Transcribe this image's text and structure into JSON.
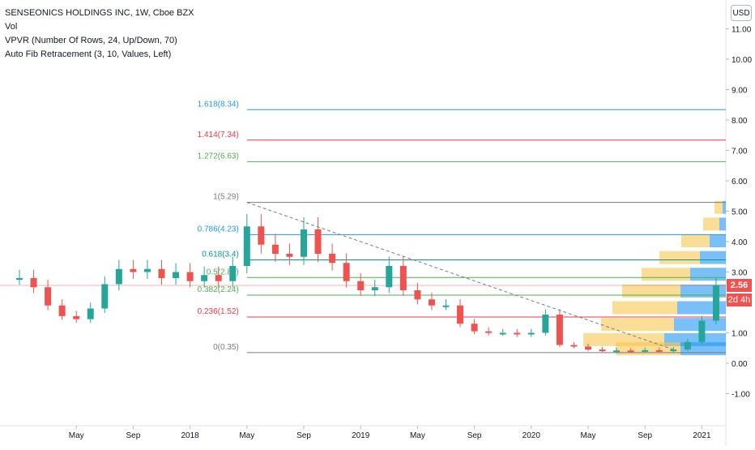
{
  "header": {
    "title": "SENSEONICS HOLDINGS INC, 1W, Cboe BZX",
    "indicators": [
      "Vol",
      "VPVR (Number Of Rows, 24, Up/Down, 70)",
      "Auto Fib Retracement (3, 10, Values, Left)"
    ]
  },
  "currency_button": "USD",
  "last_price_tag": "2.56",
  "countdown_tag": "2d 4h",
  "colors": {
    "up": "#26a69a",
    "down": "#ef5350",
    "fib_blue": "#2196f3",
    "fib_red": "#f23645",
    "fib_green": "#4caf50",
    "fib_gray": "#787b86",
    "fib_teal": "#089981",
    "vp_up": "#2196f3",
    "vp_down": "#f5c242"
  },
  "chart_data": {
    "type": "candlestick",
    "y_axis": {
      "range": [
        -1.5,
        11.5
      ],
      "ticks": [
        "11.00",
        "10.00",
        "9.00",
        "8.00",
        "7.00",
        "6.00",
        "5.00",
        "4.00",
        "3.00",
        "2.00",
        "1.00",
        "0.00",
        "-1.00"
      ]
    },
    "x_axis": {
      "ticks": [
        "May",
        "Sep",
        "2018",
        "May",
        "Sep",
        "2019",
        "May",
        "Sep",
        "2020",
        "May",
        "Sep",
        "2021"
      ]
    },
    "fib_levels": [
      {
        "label": "1.618(8.34)",
        "value": 8.34,
        "color": "#2196f3"
      },
      {
        "label": "1.414(7.34)",
        "value": 7.34,
        "color": "#f23645"
      },
      {
        "label": "1.272(6.63)",
        "value": 6.63,
        "color": "#4caf50"
      },
      {
        "label": "1(5.29)",
        "value": 5.29,
        "color": "#787b86"
      },
      {
        "label": "0.786(4.23)",
        "value": 4.23,
        "color": "#2196f3"
      },
      {
        "label": "0.618(3.4)",
        "value": 3.4,
        "color": "#089981"
      },
      {
        "label": "0.5(2.82)",
        "value": 2.82,
        "color": "#4caf50"
      },
      {
        "label": "0.382(2.24)",
        "value": 2.24,
        "color": "#4caf50"
      },
      {
        "label": "0.236(1.52)",
        "value": 1.52,
        "color": "#f23645"
      },
      {
        "label": "0(0.35)",
        "value": 0.35,
        "color": "#787b86"
      }
    ],
    "price_series": [
      [
        "2017-01",
        2.8
      ],
      [
        "2017-02",
        2.5
      ],
      [
        "2017-03",
        1.9
      ],
      [
        "2017-04",
        1.55
      ],
      [
        "2017-05",
        1.45
      ],
      [
        "2017-06",
        1.8
      ],
      [
        "2017-07",
        2.6
      ],
      [
        "2017-08",
        3.1
      ],
      [
        "2017-09",
        3.0
      ],
      [
        "2017-10",
        3.1
      ],
      [
        "2017-11",
        2.8
      ],
      [
        "2017-12",
        3.0
      ],
      [
        "2018-01",
        2.7
      ],
      [
        "2018-02",
        2.9
      ],
      [
        "2018-03",
        2.7
      ],
      [
        "2018-04",
        3.2
      ],
      [
        "2018-05",
        4.5
      ],
      [
        "2018-06",
        3.9
      ],
      [
        "2018-07",
        3.6
      ],
      [
        "2018-08",
        3.5
      ],
      [
        "2018-09",
        4.4
      ],
      [
        "2018-10",
        3.6
      ],
      [
        "2018-11",
        3.3
      ],
      [
        "2018-12",
        2.7
      ],
      [
        "2019-01",
        2.4
      ],
      [
        "2019-02",
        2.5
      ],
      [
        "2019-03",
        3.2
      ],
      [
        "2019-04",
        2.4
      ],
      [
        "2019-05",
        2.1
      ],
      [
        "2019-06",
        1.9
      ],
      [
        "2019-07",
        1.9
      ],
      [
        "2019-08",
        1.3
      ],
      [
        "2019-09",
        1.05
      ],
      [
        "2019-10",
        1.0
      ],
      [
        "2019-11",
        1.0
      ],
      [
        "2019-12",
        0.95
      ],
      [
        "2020-01",
        1.0
      ],
      [
        "2020-02",
        1.6
      ],
      [
        "2020-03",
        0.6
      ],
      [
        "2020-04",
        0.55
      ],
      [
        "2020-05",
        0.45
      ],
      [
        "2020-06",
        0.4
      ],
      [
        "2020-07",
        0.42
      ],
      [
        "2020-08",
        0.4
      ],
      [
        "2020-09",
        0.43
      ],
      [
        "2020-10",
        0.4
      ],
      [
        "2020-11",
        0.45
      ],
      [
        "2020-12",
        0.7
      ],
      [
        "2021-01",
        1.4
      ],
      [
        "2021-02",
        2.56
      ]
    ],
    "volume_profile": [
      {
        "price": 5.1,
        "up": 0.05,
        "down": 0.1
      },
      {
        "price": 4.55,
        "up": 0.1,
        "down": 0.2
      },
      {
        "price": 4.0,
        "up": 0.25,
        "down": 0.35
      },
      {
        "price": 3.45,
        "up": 0.4,
        "down": 0.5
      },
      {
        "price": 2.9,
        "up": 0.55,
        "down": 0.6
      },
      {
        "price": 2.35,
        "up": 0.7,
        "down": 0.72
      },
      {
        "price": 1.8,
        "up": 0.75,
        "down": 0.8
      },
      {
        "price": 1.25,
        "up": 0.8,
        "down": 0.9
      },
      {
        "price": 0.75,
        "up": 0.95,
        "down": 1.0
      },
      {
        "price": 0.45,
        "up": 0.7,
        "down": 0.8
      }
    ],
    "trendline": {
      "start": [
        "2018-05",
        5.29
      ],
      "end": [
        "2020-11",
        0.45
      ]
    }
  }
}
